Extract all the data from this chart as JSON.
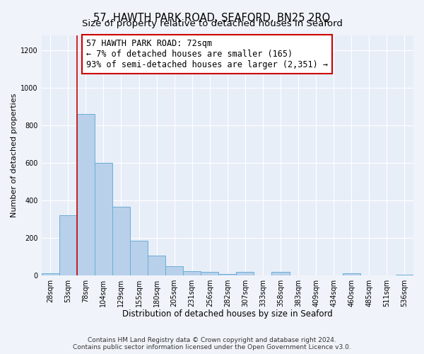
{
  "title": "57, HAWTH PARK ROAD, SEAFORD, BN25 2RQ",
  "subtitle": "Size of property relative to detached houses in Seaford",
  "xlabel": "Distribution of detached houses by size in Seaford",
  "ylabel": "Number of detached properties",
  "bin_labels": [
    "28sqm",
    "53sqm",
    "78sqm",
    "104sqm",
    "129sqm",
    "155sqm",
    "180sqm",
    "205sqm",
    "231sqm",
    "256sqm",
    "282sqm",
    "307sqm",
    "333sqm",
    "358sqm",
    "383sqm",
    "409sqm",
    "434sqm",
    "460sqm",
    "485sqm",
    "511sqm",
    "536sqm"
  ],
  "bar_values": [
    10,
    320,
    860,
    600,
    365,
    185,
    105,
    47,
    20,
    18,
    5,
    18,
    0,
    18,
    0,
    0,
    0,
    10,
    0,
    0,
    3
  ],
  "bar_color": "#b8d0ea",
  "bar_edge_color": "#6aaed6",
  "vline_color": "#cc0000",
  "annotation_line1": "57 HAWTH PARK ROAD: 72sqm",
  "annotation_line2": "← 7% of detached houses are smaller (165)",
  "annotation_line3": "93% of semi-detached houses are larger (2,351) →",
  "annotation_box_edgecolor": "#cc0000",
  "annotation_fontsize": 8.5,
  "ylim": [
    0,
    1280
  ],
  "yticks": [
    0,
    200,
    400,
    600,
    800,
    1000,
    1200
  ],
  "background_color": "#f0f4fa",
  "plot_bg_color": "#e8eef8",
  "footer_line1": "Contains HM Land Registry data © Crown copyright and database right 2024.",
  "footer_line2": "Contains public sector information licensed under the Open Government Licence v3.0.",
  "title_fontsize": 10.5,
  "subtitle_fontsize": 9.5,
  "xlabel_fontsize": 8.5,
  "ylabel_fontsize": 8,
  "tick_fontsize": 7,
  "footer_fontsize": 6.5
}
